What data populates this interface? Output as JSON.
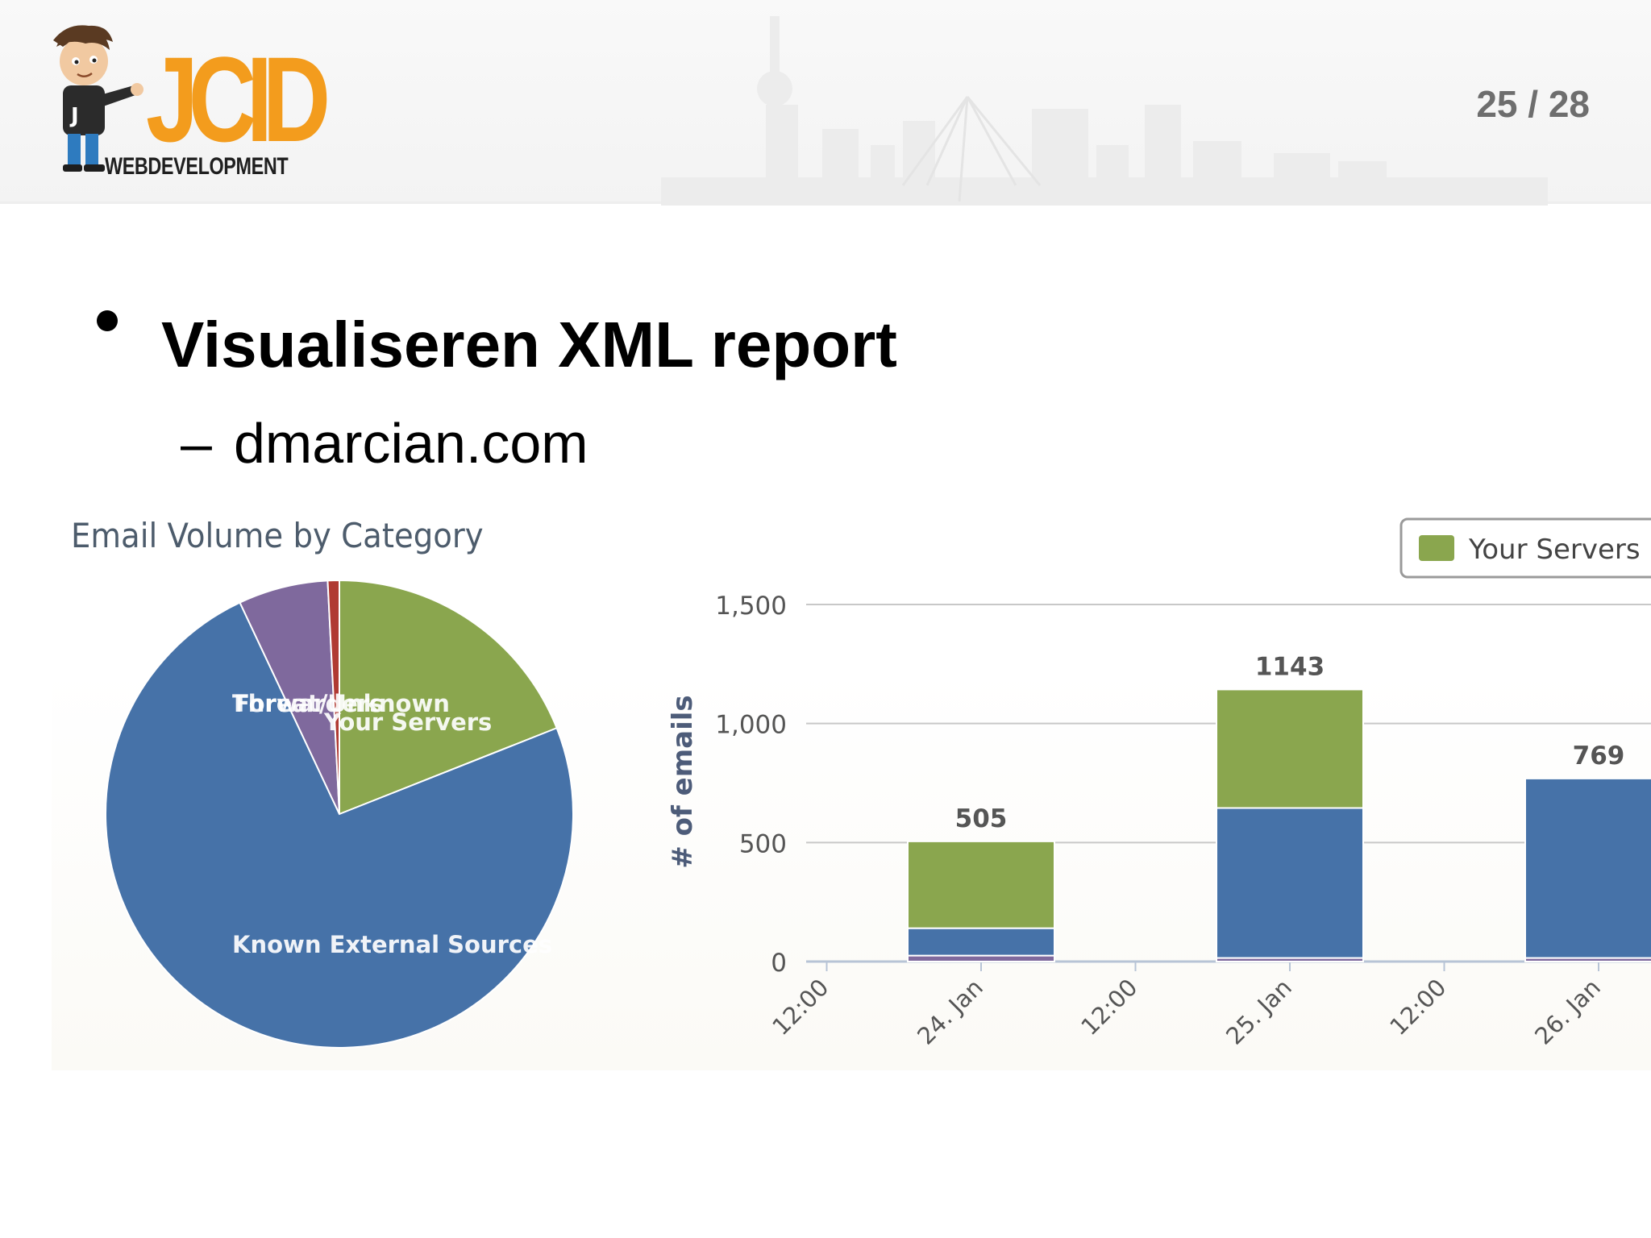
{
  "header": {
    "logo_text": "JCID",
    "logo_subtext": "WEBDEVELOPMENT",
    "page_counter": "25 / 28"
  },
  "slide": {
    "bullet": "Visualiseren XML report",
    "sub_bullet_dash": "–",
    "sub_bullet": "dmarcian.com"
  },
  "colors": {
    "your_servers": "#8aa64e",
    "known_external": "#4672a8",
    "forwarders": "#7f699d",
    "threat_unknown": "#b03a33",
    "logo_orange": "#f39c1d"
  },
  "chart_data": [
    {
      "type": "pie",
      "title": "Email Volume by Category",
      "slices": [
        {
          "label": "Your Servers",
          "value": 19.0
        },
        {
          "label": "Known External Sources",
          "value": 74.0
        },
        {
          "label": "Forwarders",
          "value": 6.2
        },
        {
          "label": "Threat/Unknown",
          "value": 0.8
        }
      ]
    },
    {
      "type": "bar",
      "stacked": true,
      "ylabel": "# of emails",
      "ylim": [
        0,
        1500
      ],
      "yticks": [
        "0",
        "500",
        "1,000",
        "1,500"
      ],
      "xticks": [
        "12:00",
        "24. Jan",
        "12:00",
        "25. Jan",
        "12:00",
        "26. Jan"
      ],
      "categories": [
        "24. Jan",
        "25. Jan",
        "26. Jan"
      ],
      "totals": [
        505,
        1143,
        769
      ],
      "series": [
        {
          "name": "",
          "values": [
            25,
            15,
            15
          ]
        },
        {
          "name": "",
          "values": [
            115,
            630,
            754
          ]
        },
        {
          "name": "Your Servers",
          "values": [
            365,
            498,
            0
          ]
        }
      ],
      "legend": {
        "label": "Your Servers",
        "position": "top-right"
      },
      "grid": true
    }
  ]
}
